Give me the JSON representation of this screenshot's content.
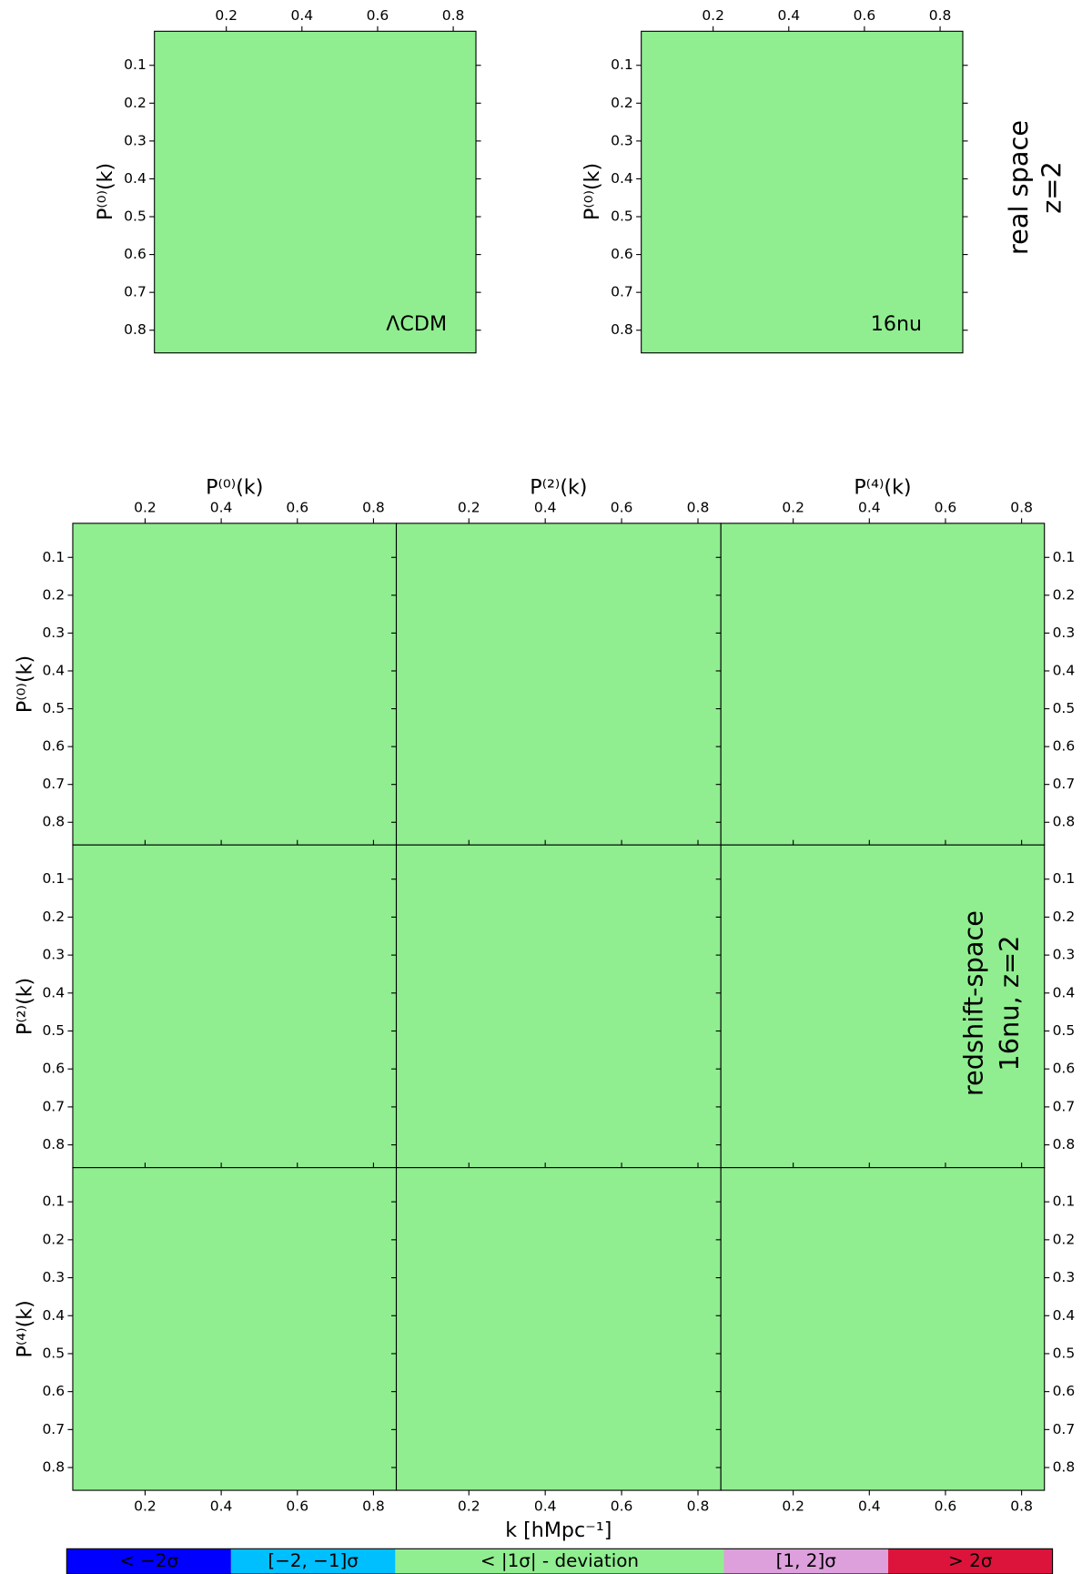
{
  "chart_data": [
    {
      "type": "heatmap",
      "ylabel": "P⁽⁰⁾(k)",
      "annotation": "ΛCDM",
      "xlim": [
        0.01,
        0.86
      ],
      "ylim": [
        0.01,
        0.86
      ],
      "xticks": [
        0.2,
        0.4,
        0.6,
        0.8
      ],
      "yticks": [
        0.1,
        0.2,
        0.3,
        0.4,
        0.5,
        0.6,
        0.7,
        0.8
      ]
    },
    {
      "type": "heatmap",
      "ylabel": "P⁽⁰⁾(k)",
      "annotation": "16nu",
      "xlim": [
        0.01,
        0.86
      ],
      "ylim": [
        0.01,
        0.86
      ],
      "xticks": [
        0.2,
        0.4,
        0.6,
        0.8
      ],
      "yticks": [
        0.1,
        0.2,
        0.3,
        0.4,
        0.5,
        0.6,
        0.7,
        0.8
      ]
    },
    {
      "type": "heatmap_grid",
      "column_labels": [
        "P⁽⁰⁾(k)",
        "P⁽²⁾(k)",
        "P⁽⁴⁾(k)"
      ],
      "row_labels": [
        "P⁽⁰⁾(k)",
        "P⁽²⁾(k)",
        "P⁽⁴⁾(k)"
      ],
      "xlabel": "k [hMpc⁻¹]",
      "annotation": [
        "redshift-space",
        "16nu, z=2"
      ],
      "xlim": [
        0.01,
        0.86
      ],
      "ylim": [
        0.01,
        0.86
      ],
      "xticks": [
        0.2,
        0.4,
        0.6,
        0.8
      ],
      "yticks": [
        0.1,
        0.2,
        0.3,
        0.4,
        0.5,
        0.6,
        0.7,
        0.8
      ]
    }
  ],
  "side_label": [
    "real space",
    "z=2"
  ],
  "colorbar": {
    "labels": [
      "< −2σ",
      "[−2, −1]σ",
      "< |1σ| - deviation",
      "[1, 2]σ",
      "> 2σ"
    ],
    "colors": [
      "#0000ff",
      "#00bfff",
      "#90ee90",
      "#dda0dd",
      "#dc143c"
    ]
  }
}
